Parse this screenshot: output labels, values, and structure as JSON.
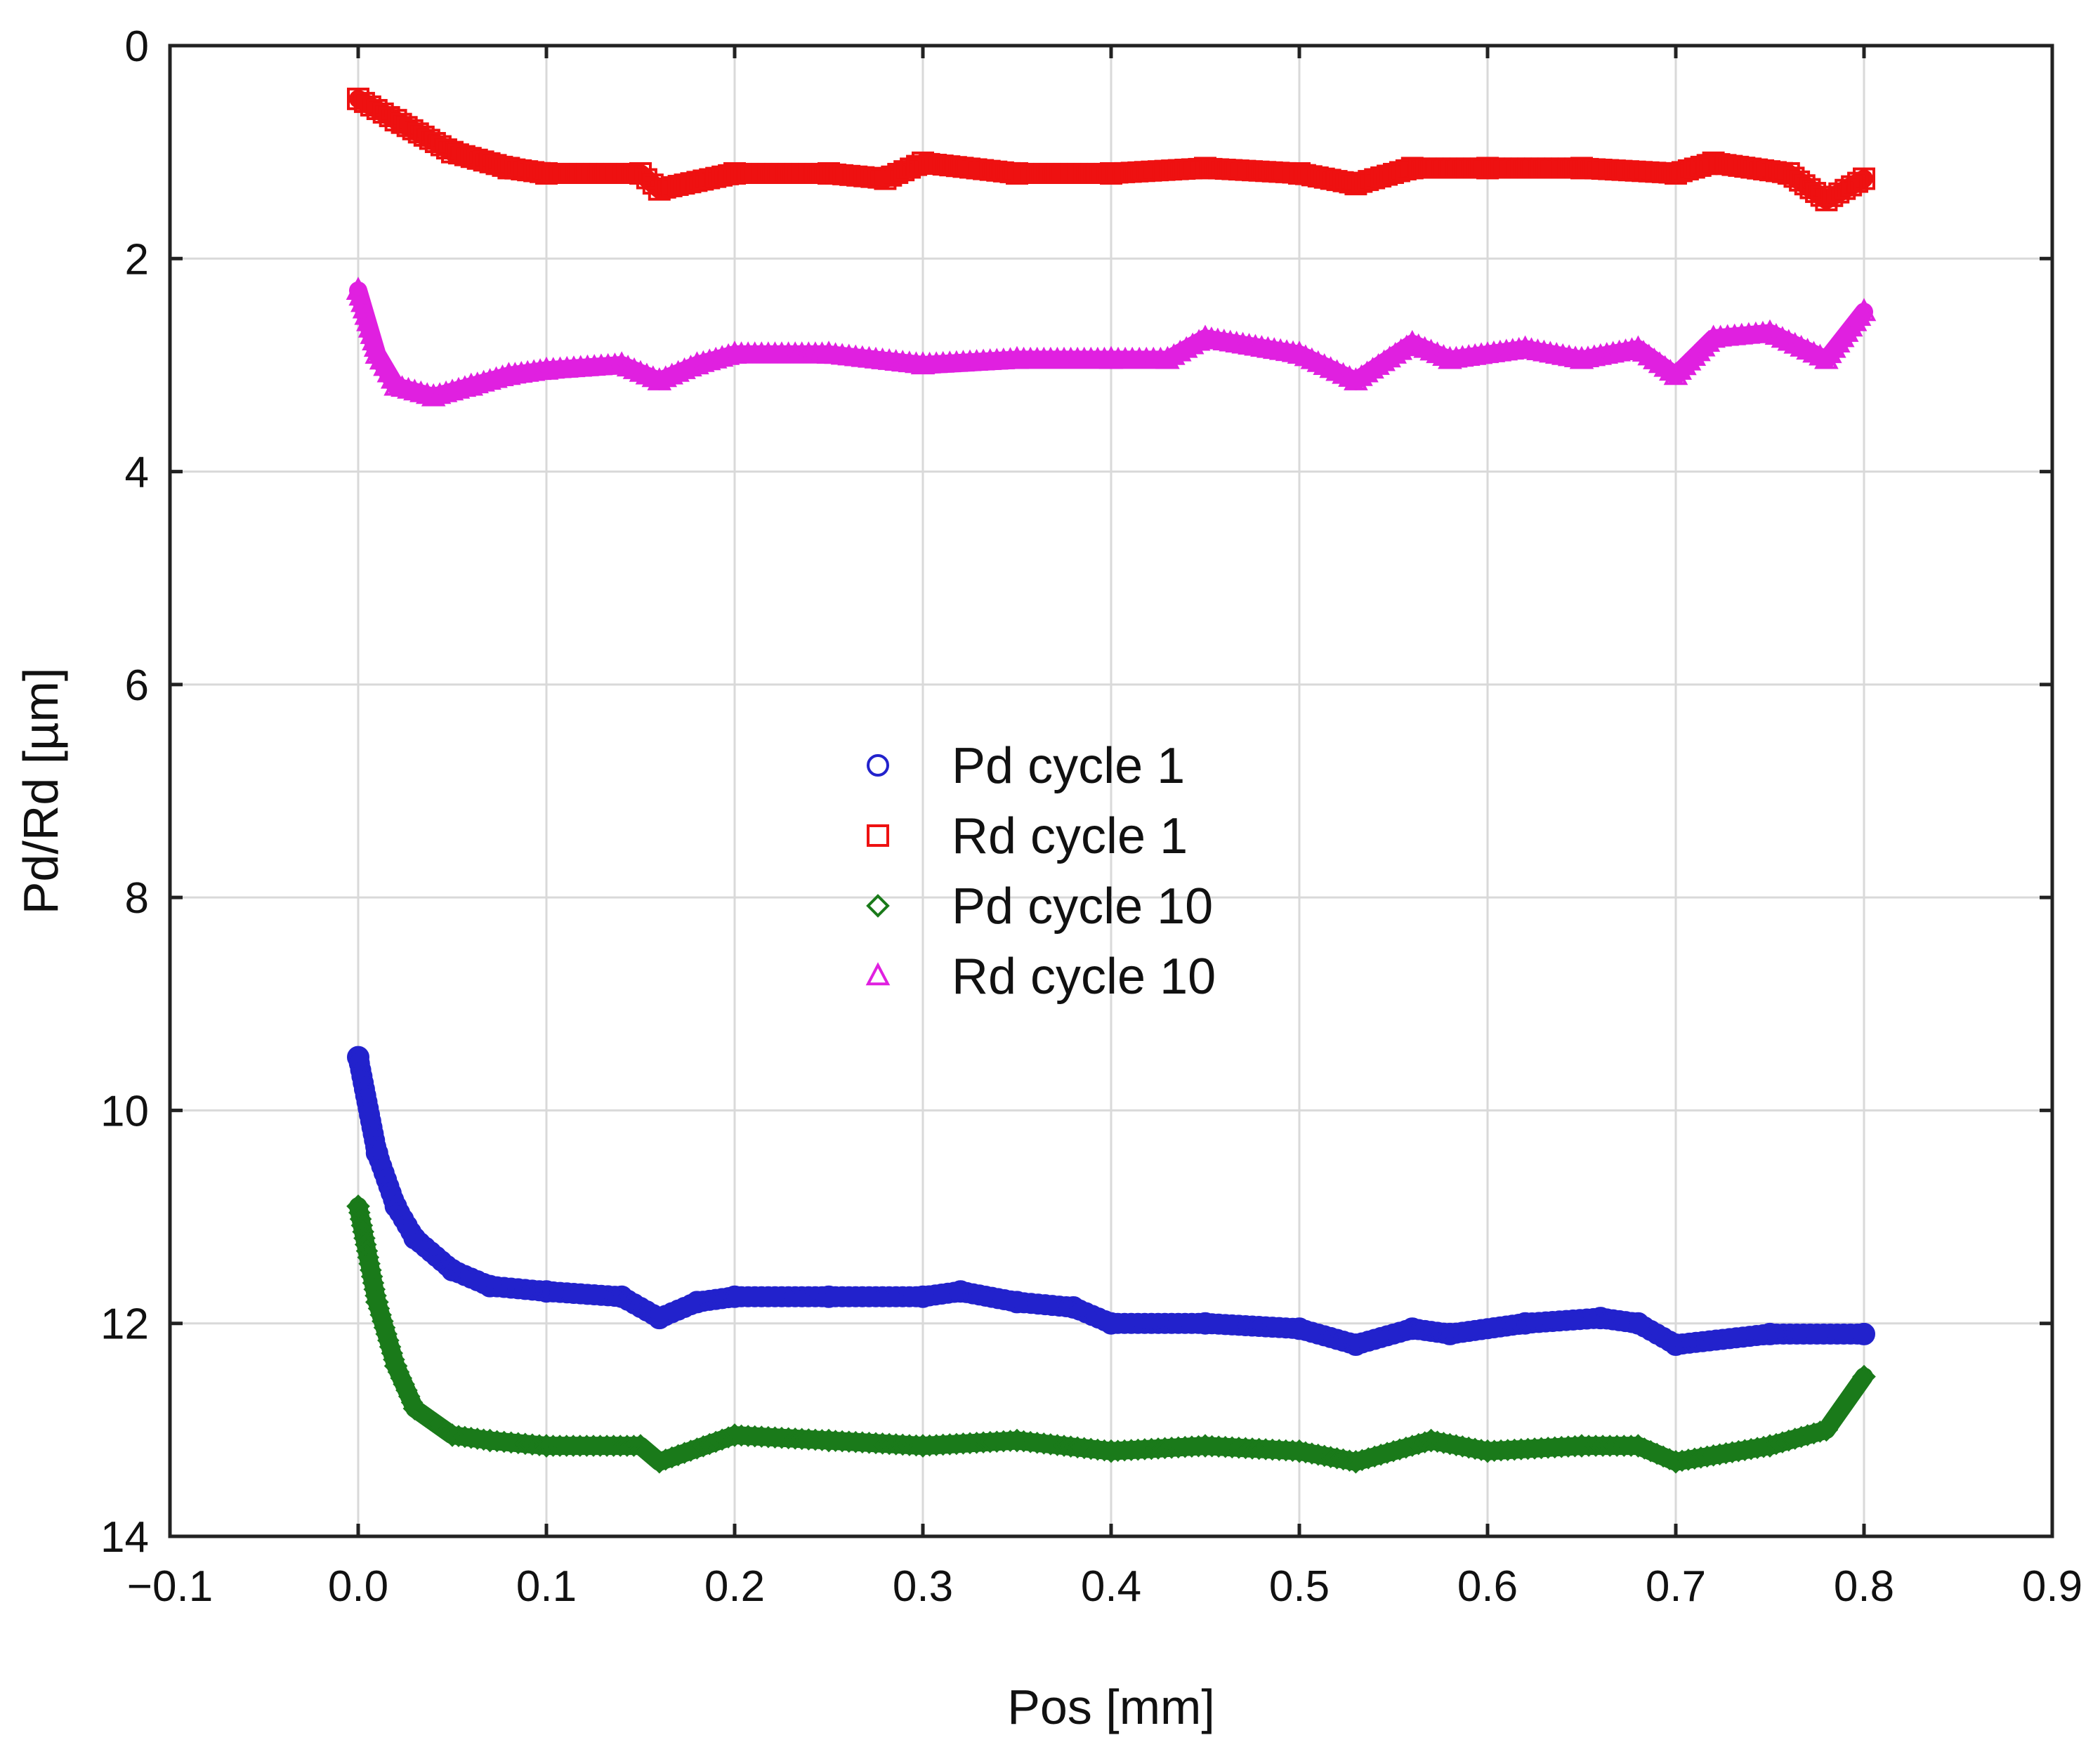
{
  "chart_data": {
    "type": "scatter",
    "title": "",
    "xlabel": "Pos [mm]",
    "ylabel": "Pd/Rd [µm]",
    "xlim": [
      -0.1,
      0.9
    ],
    "ylim": [
      0,
      14
    ],
    "y_inverted": true,
    "grid": true,
    "legend_position": "center",
    "x_ticks": [
      -0.1,
      0.0,
      0.1,
      0.2,
      0.3,
      0.4,
      0.5,
      0.6,
      0.7,
      0.8,
      0.9
    ],
    "x_tick_labels": [
      "−0.1",
      "0.0",
      "0.1",
      "0.2",
      "0.3",
      "0.4",
      "0.5",
      "0.6",
      "0.7",
      "0.8",
      "0.9"
    ],
    "y_ticks": [
      0,
      2,
      4,
      6,
      8,
      10,
      12,
      14
    ],
    "y_tick_labels": [
      "0",
      "2",
      "4",
      "6",
      "8",
      "10",
      "12",
      "14"
    ],
    "series": [
      {
        "name": "Pd cycle 1",
        "marker": "circle",
        "color": "#2222cc",
        "x": [
          0.0,
          0.01,
          0.02,
          0.03,
          0.05,
          0.07,
          0.1,
          0.14,
          0.16,
          0.18,
          0.2,
          0.25,
          0.3,
          0.32,
          0.35,
          0.38,
          0.4,
          0.45,
          0.5,
          0.53,
          0.56,
          0.58,
          0.62,
          0.66,
          0.68,
          0.7,
          0.75,
          0.8
        ],
        "y": [
          9.5,
          10.4,
          10.9,
          11.2,
          11.5,
          11.65,
          11.7,
          11.75,
          11.95,
          11.8,
          11.75,
          11.75,
          11.75,
          11.7,
          11.8,
          11.85,
          12.0,
          12.0,
          12.05,
          12.2,
          12.05,
          12.1,
          12.0,
          11.95,
          12.0,
          12.2,
          12.1,
          12.1
        ]
      },
      {
        "name": "Rd cycle 1",
        "marker": "square",
        "color": "#ee1111",
        "x": [
          0.0,
          0.02,
          0.05,
          0.08,
          0.1,
          0.15,
          0.16,
          0.2,
          0.25,
          0.28,
          0.3,
          0.35,
          0.4,
          0.45,
          0.5,
          0.53,
          0.56,
          0.6,
          0.65,
          0.7,
          0.72,
          0.76,
          0.78,
          0.8
        ],
        "y": [
          0.5,
          0.7,
          1.0,
          1.15,
          1.2,
          1.2,
          1.35,
          1.2,
          1.2,
          1.25,
          1.1,
          1.2,
          1.2,
          1.15,
          1.2,
          1.3,
          1.15,
          1.15,
          1.15,
          1.2,
          1.1,
          1.2,
          1.45,
          1.25
        ]
      },
      {
        "name": "Pd cycle 10",
        "marker": "diamond",
        "color": "#1a7a1a",
        "x": [
          0.0,
          0.01,
          0.02,
          0.03,
          0.05,
          0.07,
          0.1,
          0.15,
          0.16,
          0.2,
          0.25,
          0.3,
          0.35,
          0.4,
          0.45,
          0.5,
          0.53,
          0.57,
          0.6,
          0.65,
          0.68,
          0.7,
          0.75,
          0.78,
          0.8
        ],
        "y": [
          10.9,
          11.8,
          12.4,
          12.8,
          13.05,
          13.1,
          13.15,
          13.15,
          13.3,
          13.05,
          13.1,
          13.15,
          13.1,
          13.2,
          13.15,
          13.2,
          13.3,
          13.1,
          13.2,
          13.15,
          13.15,
          13.3,
          13.15,
          13.0,
          12.5
        ]
      },
      {
        "name": "Rd cycle 10",
        "marker": "triangle",
        "color": "#e020e0",
        "x": [
          0.0,
          0.01,
          0.02,
          0.04,
          0.06,
          0.08,
          0.1,
          0.14,
          0.16,
          0.18,
          0.2,
          0.25,
          0.3,
          0.35,
          0.4,
          0.43,
          0.45,
          0.5,
          0.53,
          0.56,
          0.58,
          0.62,
          0.65,
          0.68,
          0.7,
          0.72,
          0.75,
          0.78,
          0.8
        ],
        "y": [
          2.3,
          2.9,
          3.2,
          3.3,
          3.2,
          3.1,
          3.05,
          3.0,
          3.15,
          3.0,
          2.9,
          2.9,
          3.0,
          2.95,
          2.95,
          2.95,
          2.75,
          2.9,
          3.15,
          2.8,
          2.95,
          2.85,
          2.95,
          2.85,
          3.1,
          2.75,
          2.7,
          2.95,
          2.5
        ]
      }
    ]
  }
}
